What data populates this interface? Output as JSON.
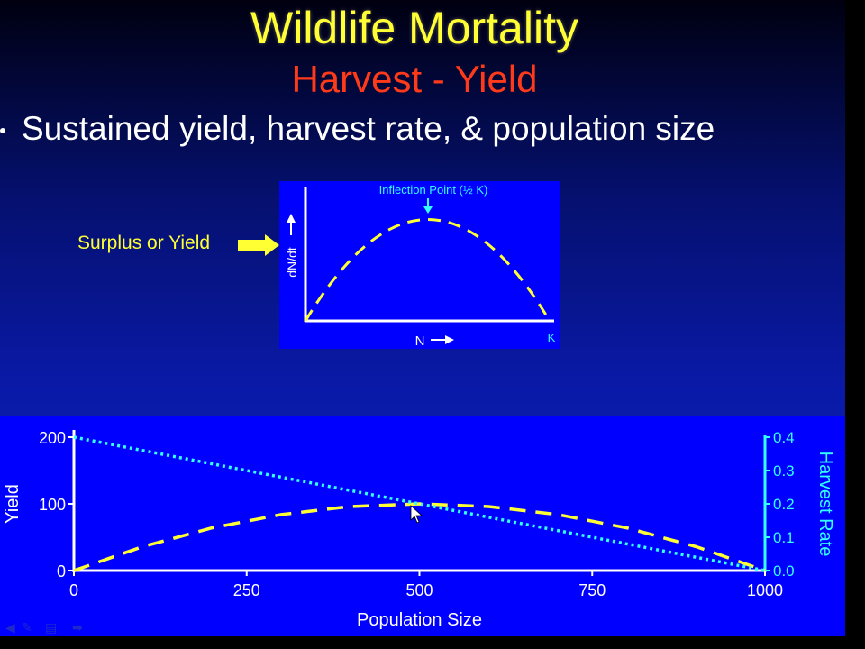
{
  "slide": {
    "title": "Wildlife Mortality",
    "subtitle": "Harvest - Yield",
    "bullet": "Sustained yield, harvest rate, & population size",
    "surplus_label": "Surplus or Yield"
  },
  "inset_chart": {
    "annotation": "Inflection Point (½ K)",
    "ylabel": "dN/dt",
    "xlabel": "N",
    "k_label": "K"
  },
  "chart_data": {
    "type": "line",
    "xlabel": "Population Size",
    "ylabel": "Yield",
    "y2label": "Harvest Rate",
    "xlim": [
      0,
      1000
    ],
    "ylim": [
      0,
      200
    ],
    "y2lim": [
      0,
      0.4
    ],
    "xticks": [
      "0",
      "250",
      "500",
      "750",
      "1000"
    ],
    "yticks": [
      "0",
      "100",
      "200"
    ],
    "y2ticks": [
      "0.0",
      "0.1",
      "0.2",
      "0.3",
      "0.4"
    ],
    "series": [
      {
        "name": "Yield",
        "axis": "left",
        "x": [
          0,
          100,
          200,
          300,
          400,
          500,
          600,
          700,
          800,
          900,
          1000
        ],
        "values": [
          0,
          36,
          64,
          84,
          96,
          100,
          96,
          84,
          64,
          36,
          0
        ]
      },
      {
        "name": "Harvest Rate",
        "axis": "right",
        "x": [
          0,
          1000
        ],
        "values": [
          0.4,
          0.0
        ]
      }
    ],
    "colors": {
      "yield": "#ffff33",
      "harvest_rate": "#33ffff",
      "axes": "#ffffff"
    },
    "grid": false
  }
}
